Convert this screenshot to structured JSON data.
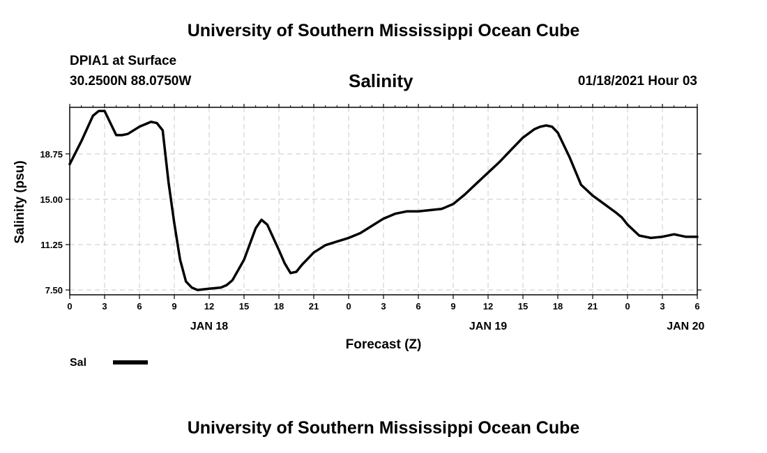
{
  "header": {
    "top_title": "University of Southern Mississippi Ocean Cube",
    "station": "DPIA1 at Surface",
    "location": "30.2500N 88.0750W",
    "chart_title": "Salinity",
    "datetime": "01/18/2021 Hour 03",
    "bottom_title": "University of Southern Mississippi Ocean Cube"
  },
  "chart_data": {
    "type": "line",
    "title": "Salinity",
    "xlabel": "Forecast (Z)",
    "ylabel": "Salinity (psu)",
    "x_ticks": [
      "0",
      "3",
      "6",
      "9",
      "12",
      "15",
      "18",
      "21",
      "0",
      "3",
      "6",
      "9",
      "12",
      "15",
      "18",
      "21",
      "0",
      "3",
      "6"
    ],
    "x_date_labels": [
      {
        "label": "JAN 18",
        "at_hour": 12
      },
      {
        "label": "JAN 19",
        "at_hour": 36
      },
      {
        "label": "JAN 20",
        "at_hour": 53
      }
    ],
    "y_ticks": [
      "7.50",
      "11.25",
      "15.00",
      "18.75"
    ],
    "ylim": [
      7.1,
      22.6
    ],
    "xlim": [
      0,
      54
    ],
    "grid": true,
    "legend": [
      {
        "name": "Sal",
        "color": "#000000"
      }
    ],
    "series": [
      {
        "name": "Sal",
        "color": "#000000",
        "x": [
          0,
          1,
          2,
          2.5,
          3,
          4,
          4.5,
          5,
          6,
          7,
          7.5,
          8,
          8.5,
          9,
          9.5,
          10,
          10.5,
          11,
          12,
          13,
          13.5,
          14,
          15,
          16,
          16.5,
          17,
          18,
          18.5,
          19,
          19.5,
          20,
          21,
          22,
          23,
          24,
          25,
          26,
          27,
          28,
          29,
          30,
          31,
          32,
          33,
          34,
          35,
          36,
          37,
          38,
          39,
          40,
          40.5,
          41,
          41.5,
          42,
          43,
          44,
          45,
          46,
          47,
          47.5,
          48,
          49,
          50,
          51,
          52,
          53,
          53.5,
          54
        ],
        "y": [
          17.9,
          19.8,
          21.9,
          22.3,
          22.3,
          20.3,
          20.3,
          20.4,
          21.0,
          21.4,
          21.3,
          20.7,
          16.4,
          13.0,
          10.0,
          8.2,
          7.7,
          7.5,
          7.6,
          7.7,
          7.9,
          8.3,
          10.0,
          12.6,
          13.3,
          12.9,
          10.8,
          9.7,
          8.9,
          9.0,
          9.6,
          10.6,
          11.2,
          11.5,
          11.8,
          12.2,
          12.8,
          13.4,
          13.8,
          14.0,
          14.0,
          14.1,
          14.2,
          14.6,
          15.4,
          16.3,
          17.2,
          18.1,
          19.1,
          20.1,
          20.8,
          21.0,
          21.1,
          21.0,
          20.5,
          18.5,
          16.2,
          15.3,
          14.6,
          13.9,
          13.5,
          12.9,
          12.0,
          11.8,
          11.9,
          12.1,
          11.9,
          11.9,
          11.9
        ]
      }
    ]
  }
}
